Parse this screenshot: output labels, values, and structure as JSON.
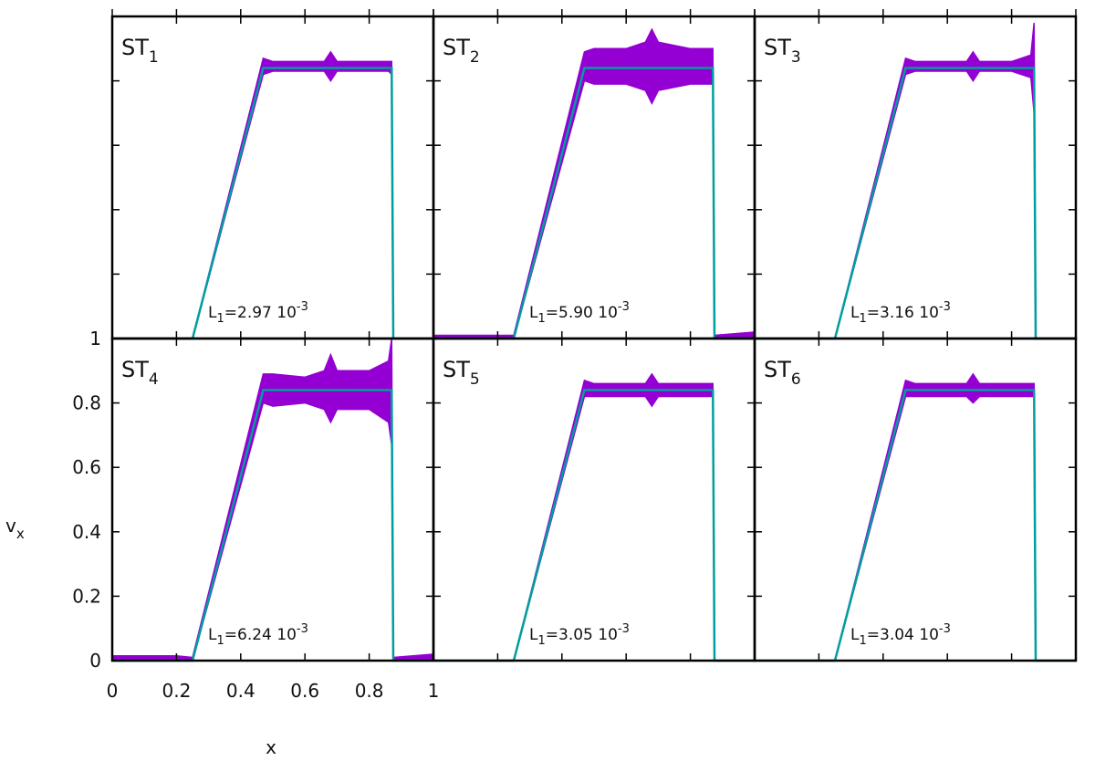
{
  "chart_data": [
    {
      "type": "band-line",
      "panel_label": "ST",
      "panel_label_sub": "1",
      "annotation": [
        "L",
        "1",
        "=2.97 10",
        "-3"
      ],
      "xlim": [
        0,
        1
      ],
      "ylim": [
        0,
        1
      ],
      "x": [
        0,
        0.2,
        0.25,
        0.47,
        0.5,
        0.6,
        0.66,
        0.68,
        0.7,
        0.8,
        0.86,
        0.87,
        0.875,
        1
      ],
      "series": [
        {
          "color": "#9400d3",
          "upper": [
            0,
            0,
            0,
            0.87,
            0.86,
            0.86,
            0.86,
            0.89,
            0.86,
            0.86,
            0.86,
            0.86,
            0,
            0
          ],
          "lower": [
            0,
            0,
            0,
            0.82,
            0.83,
            0.83,
            0.83,
            0.8,
            0.83,
            0.83,
            0.83,
            0.82,
            0,
            0
          ]
        },
        {
          "color": "#009e9e",
          "values": [
            0,
            0,
            0,
            0.84,
            0.84,
            0.84,
            0.84,
            0.84,
            0.84,
            0.84,
            0.84,
            0.84,
            0,
            0
          ]
        }
      ]
    },
    {
      "type": "band-line",
      "panel_label": "ST",
      "panel_label_sub": "2",
      "annotation": [
        "L",
        "1",
        "=5.90 10",
        "-3"
      ],
      "xlim": [
        0,
        1
      ],
      "ylim": [
        0,
        1
      ],
      "x": [
        0,
        0.2,
        0.25,
        0.47,
        0.5,
        0.6,
        0.66,
        0.68,
        0.7,
        0.8,
        0.86,
        0.87,
        0.875,
        1
      ],
      "series": [
        {
          "color": "#9400d3",
          "upper": [
            0.01,
            0.01,
            0.01,
            0.89,
            0.9,
            0.9,
            0.92,
            0.96,
            0.92,
            0.9,
            0.9,
            0.9,
            0.01,
            0.02
          ],
          "lower": [
            0,
            0,
            0,
            0.8,
            0.79,
            0.79,
            0.77,
            0.73,
            0.77,
            0.79,
            0.79,
            0.79,
            0,
            0
          ]
        },
        {
          "color": "#009e9e",
          "values": [
            0,
            0,
            0,
            0.84,
            0.84,
            0.84,
            0.84,
            0.84,
            0.84,
            0.84,
            0.84,
            0.84,
            0,
            0
          ]
        }
      ]
    },
    {
      "type": "band-line",
      "panel_label": "ST",
      "panel_label_sub": "3",
      "annotation": [
        "L",
        "1",
        "=3.16 10",
        "-3"
      ],
      "xlim": [
        0,
        1
      ],
      "ylim": [
        0,
        1
      ],
      "x": [
        0,
        0.2,
        0.25,
        0.47,
        0.5,
        0.6,
        0.66,
        0.68,
        0.7,
        0.8,
        0.86,
        0.87,
        0.875,
        1
      ],
      "series": [
        {
          "color": "#9400d3",
          "upper": [
            0,
            0,
            0,
            0.87,
            0.86,
            0.86,
            0.86,
            0.89,
            0.86,
            0.86,
            0.88,
            0.98,
            0,
            0
          ],
          "lower": [
            0,
            0,
            0,
            0.82,
            0.83,
            0.83,
            0.83,
            0.8,
            0.83,
            0.83,
            0.81,
            0.7,
            0,
            0
          ]
        },
        {
          "color": "#009e9e",
          "values": [
            0,
            0,
            0,
            0.84,
            0.84,
            0.84,
            0.84,
            0.84,
            0.84,
            0.84,
            0.84,
            0.84,
            0,
            0
          ]
        }
      ]
    },
    {
      "type": "band-line",
      "panel_label": "ST",
      "panel_label_sub": "4",
      "annotation": [
        "L",
        "1",
        "=6.24 10",
        "-3"
      ],
      "xlim": [
        0,
        1
      ],
      "ylim": [
        0,
        1
      ],
      "xticks": [
        0,
        0.2,
        0.4,
        0.6,
        0.8,
        1
      ],
      "yticks": [
        0,
        0.2,
        0.4,
        0.6,
        0.8,
        1
      ],
      "xlabel": "x",
      "ylabel": "v",
      "ylabel_sub": "x",
      "x": [
        0,
        0.2,
        0.25,
        0.47,
        0.5,
        0.6,
        0.66,
        0.68,
        0.7,
        0.8,
        0.86,
        0.87,
        0.875,
        1
      ],
      "series": [
        {
          "color": "#9400d3",
          "upper": [
            0.015,
            0.015,
            0.01,
            0.89,
            0.89,
            0.88,
            0.9,
            0.95,
            0.9,
            0.9,
            0.93,
            1,
            0.01,
            0.02
          ],
          "lower": [
            0.005,
            0.005,
            0,
            0.8,
            0.79,
            0.8,
            0.78,
            0.74,
            0.78,
            0.78,
            0.74,
            0.67,
            0,
            0
          ]
        },
        {
          "color": "#009e9e",
          "values": [
            0,
            0,
            0,
            0.84,
            0.84,
            0.84,
            0.84,
            0.84,
            0.84,
            0.84,
            0.84,
            0.84,
            0,
            0
          ]
        }
      ]
    },
    {
      "type": "band-line",
      "panel_label": "ST",
      "panel_label_sub": "5",
      "annotation": [
        "L",
        "1",
        "=3.05 10",
        "-3"
      ],
      "xlim": [
        0,
        1
      ],
      "ylim": [
        0,
        1
      ],
      "x": [
        0,
        0.2,
        0.25,
        0.47,
        0.5,
        0.6,
        0.66,
        0.68,
        0.7,
        0.8,
        0.86,
        0.87,
        0.875,
        1
      ],
      "series": [
        {
          "color": "#9400d3",
          "upper": [
            0,
            0,
            0,
            0.87,
            0.86,
            0.86,
            0.86,
            0.89,
            0.86,
            0.86,
            0.86,
            0.86,
            0,
            0
          ],
          "lower": [
            0,
            0,
            0,
            0.82,
            0.82,
            0.82,
            0.82,
            0.79,
            0.82,
            0.82,
            0.82,
            0.82,
            0,
            0
          ]
        },
        {
          "color": "#009e9e",
          "values": [
            0,
            0,
            0,
            0.84,
            0.84,
            0.84,
            0.84,
            0.84,
            0.84,
            0.84,
            0.84,
            0.84,
            0,
            0
          ]
        }
      ]
    },
    {
      "type": "band-line",
      "panel_label": "ST",
      "panel_label_sub": "6",
      "annotation": [
        "L",
        "1",
        "=3.04 10",
        "-3"
      ],
      "xlim": [
        0,
        1
      ],
      "ylim": [
        0,
        1
      ],
      "x": [
        0,
        0.2,
        0.25,
        0.47,
        0.5,
        0.6,
        0.66,
        0.68,
        0.7,
        0.8,
        0.86,
        0.87,
        0.875,
        1
      ],
      "series": [
        {
          "color": "#9400d3",
          "upper": [
            0,
            0,
            0,
            0.87,
            0.86,
            0.86,
            0.86,
            0.89,
            0.86,
            0.86,
            0.86,
            0.86,
            0,
            0
          ],
          "lower": [
            0,
            0,
            0,
            0.82,
            0.82,
            0.82,
            0.82,
            0.8,
            0.82,
            0.82,
            0.82,
            0.82,
            0,
            0
          ]
        },
        {
          "color": "#009e9e",
          "values": [
            0,
            0,
            0,
            0.84,
            0.84,
            0.84,
            0.84,
            0.84,
            0.84,
            0.84,
            0.84,
            0.84,
            0,
            0
          ]
        }
      ]
    }
  ]
}
